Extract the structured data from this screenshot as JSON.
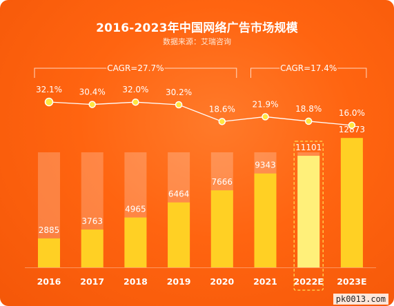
{
  "header": {
    "title": "2016-2023年中国网络广告市场规模",
    "source": "数据来源：艾瑞咨询"
  },
  "watermark": "pk0013.com",
  "colors": {
    "bar": "#ffd024",
    "bar_highlight": "#fff07a",
    "bar_track": "rgba(255,255,255,0.22)",
    "line": "#ffffff",
    "dot": "#ffe640",
    "text": "#ffffff"
  },
  "chart_data": {
    "type": "bar",
    "categories": [
      "2016",
      "2017",
      "2018",
      "2019",
      "2020",
      "2021",
      "2022E",
      "2023E"
    ],
    "values": [
      2885,
      3763,
      4965,
      6464,
      7666,
      9343,
      11101,
      12873
    ],
    "highlight_index": 6,
    "growth_rates": [
      "32.1%",
      "30.4%",
      "32.0%",
      "30.2%",
      "18.6%",
      "21.9%",
      "18.8%",
      "16.0%"
    ],
    "growth_values": [
      32.1,
      30.4,
      32.0,
      30.2,
      18.6,
      21.9,
      18.8,
      16.0
    ],
    "cagr_annotations": [
      {
        "label": "CAGR=27.7%",
        "from": 0,
        "to": 4
      },
      {
        "label": "CAGR=17.4%",
        "from": 5,
        "to": 7
      }
    ],
    "ylim": [
      0,
      17000
    ],
    "grid": false
  }
}
